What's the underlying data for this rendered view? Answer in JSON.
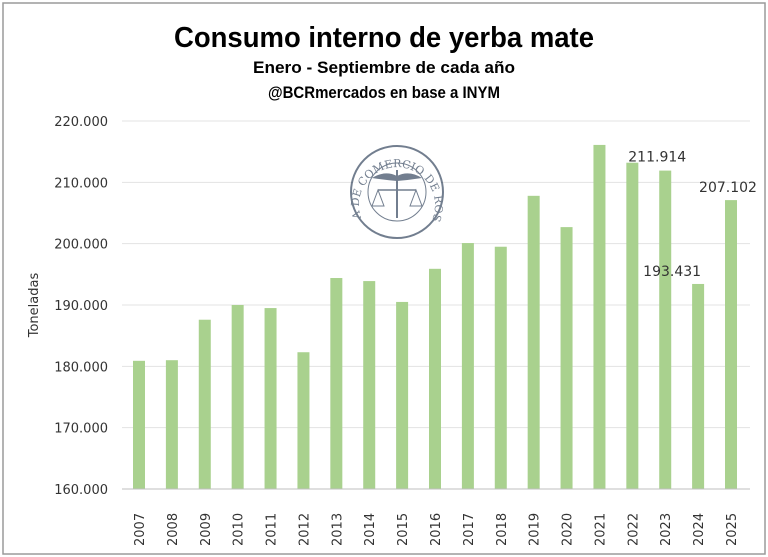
{
  "chart_data": {
    "type": "bar",
    "title": "Consumo interno de yerba mate",
    "subtitle": "Enero - Septiembre de cada año",
    "source": "@BCRmercados en base a INYM",
    "ylabel": "Toneladas",
    "xlabel": "",
    "ylim": [
      160000,
      220000
    ],
    "yticks": [
      "160.000",
      "170.000",
      "180.000",
      "190.000",
      "200.000",
      "210.000",
      "220.000"
    ],
    "grid": true,
    "bar_color": "#a9d18e",
    "categories": [
      "2007",
      "2008",
      "2009",
      "2010",
      "2011",
      "2012",
      "2013",
      "2014",
      "2015",
      "2016",
      "2017",
      "2018",
      "2019",
      "2020",
      "2021",
      "2022",
      "2023",
      "2024",
      "2025"
    ],
    "values": [
      180900,
      181000,
      187600,
      190000,
      189500,
      182300,
      194400,
      193900,
      190500,
      195900,
      200100,
      199500,
      207800,
      202700,
      216100,
      213200,
      211914,
      193431,
      207102
    ],
    "data_labels": [
      {
        "category": "2023",
        "text": "211.914"
      },
      {
        "category": "2024",
        "text": "193.431"
      },
      {
        "category": "2025",
        "text": "207.102"
      }
    ],
    "watermark": "BOLSA DE COMERCIO DE ROSARIO"
  }
}
